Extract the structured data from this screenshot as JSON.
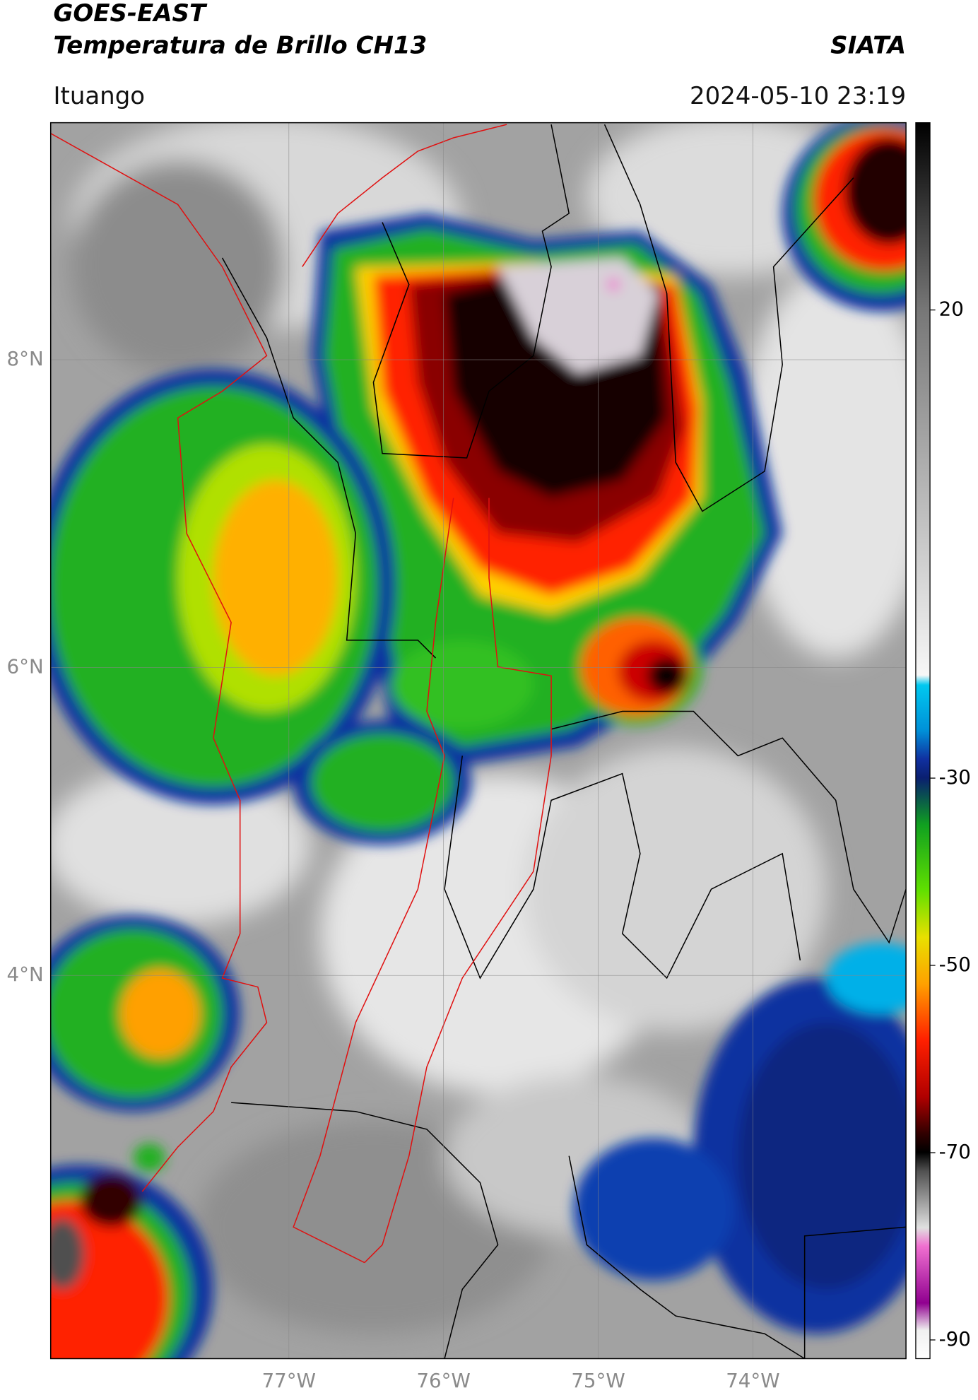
{
  "header": {
    "title": "GOES-EAST",
    "subtitle": "Temperatura de Brillo CH13",
    "source": "SIATA",
    "location": "Ituango",
    "timestamp": "2024-05-10 23:19"
  },
  "map": {
    "xlim": [
      -78.54,
      -73.01
    ],
    "ylim": [
      1.51,
      9.54
    ],
    "xticks": [
      {
        "value": -77,
        "label": "77°W"
      },
      {
        "value": -76,
        "label": "76°W"
      },
      {
        "value": -75,
        "label": "75°W"
      },
      {
        "value": -74,
        "label": "74°W"
      }
    ],
    "yticks": [
      {
        "value": 4,
        "label": "4°N"
      },
      {
        "value": 6,
        "label": "6°N"
      },
      {
        "value": 8,
        "label": "8°N"
      }
    ],
    "grid": true
  },
  "colorbar": {
    "clim": [
      -92,
      40
    ],
    "ticks": [
      20,
      -30,
      -50,
      -70,
      -90
    ]
  }
}
